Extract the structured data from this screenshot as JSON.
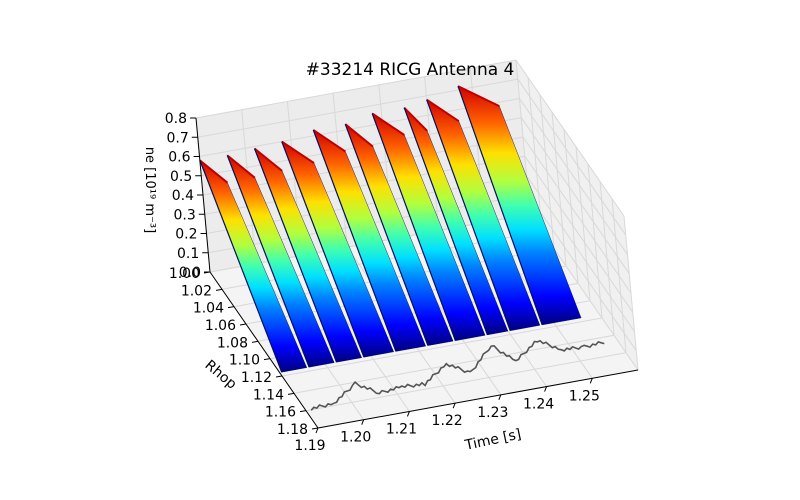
{
  "chart_data": {
    "type": "surface3d",
    "title": "#33214 RICG Antenna 4",
    "xlabel": "Time [s]",
    "ylabel": "Rhop",
    "zlabel": "ne [10¹⁹ m⁻³]",
    "xlim": [
      1.19,
      1.26
    ],
    "ylim": [
      1.18,
      1.0
    ],
    "zlim": [
      0.0,
      0.8
    ],
    "x_ticks": [
      "1.19",
      "1.20",
      "1.21",
      "1.22",
      "1.23",
      "1.24",
      "1.25"
    ],
    "y_ticks": [
      "1.00",
      "1.02",
      "1.04",
      "1.06",
      "1.08",
      "1.10",
      "1.12",
      "1.14",
      "1.16",
      "1.18"
    ],
    "z_ticks": [
      "0.0",
      "0.1",
      "0.2",
      "0.3",
      "0.4",
      "0.5",
      "0.6",
      "0.7",
      "0.8"
    ],
    "colormap": "jet",
    "grid": true,
    "surface_ridges": [
      {
        "time": 1.19,
        "peak_ne": 0.58
      },
      {
        "time": 1.196,
        "peak_ne": 0.58
      },
      {
        "time": 1.202,
        "peak_ne": 0.59
      },
      {
        "time": 1.208,
        "peak_ne": 0.6
      },
      {
        "time": 1.215,
        "peak_ne": 0.63
      },
      {
        "time": 1.222,
        "peak_ne": 0.63
      },
      {
        "time": 1.228,
        "peak_ne": 0.66
      },
      {
        "time": 1.235,
        "peak_ne": 0.66
      },
      {
        "time": 1.24,
        "peak_ne": 0.68
      },
      {
        "time": 1.247,
        "peak_ne": 0.72
      }
    ],
    "signal_trace": {
      "color": "#555555",
      "description_times": [
        1.19,
        1.195,
        1.2,
        1.205,
        1.21,
        1.215,
        1.22,
        1.225,
        1.23,
        1.235,
        1.24,
        1.245,
        1.25,
        1.255
      ],
      "relative_level": [
        0.1,
        0.12,
        0.35,
        0.15,
        0.18,
        0.16,
        0.4,
        0.2,
        0.55,
        0.25,
        0.5,
        0.3,
        0.28,
        0.3
      ]
    }
  }
}
